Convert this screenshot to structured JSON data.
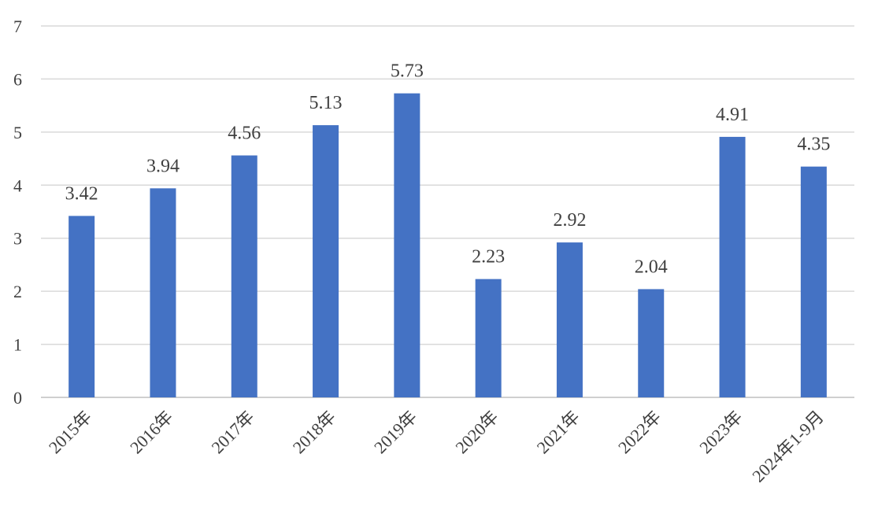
{
  "chart_data": {
    "type": "bar",
    "categories": [
      "2015年",
      "2016年",
      "2017年",
      "2018年",
      "2019年",
      "2020年",
      "2021年",
      "2022年",
      "2023年",
      "2024年1-9月"
    ],
    "values": [
      3.42,
      3.94,
      4.56,
      5.13,
      5.73,
      2.23,
      2.92,
      2.04,
      4.91,
      4.35
    ],
    "data_labels": [
      "3.42",
      "3.94",
      "4.56",
      "5.13",
      "5.73",
      "2.23",
      "2.92",
      "2.04",
      "4.91",
      "4.35"
    ],
    "y_ticks": [
      "0",
      "1",
      "2",
      "3",
      "4",
      "5",
      "6",
      "7"
    ],
    "ylim": [
      0,
      7
    ],
    "grid": true,
    "legend": "none",
    "bar_color": "#4472c4",
    "title": "",
    "xlabel": "",
    "ylabel": ""
  }
}
